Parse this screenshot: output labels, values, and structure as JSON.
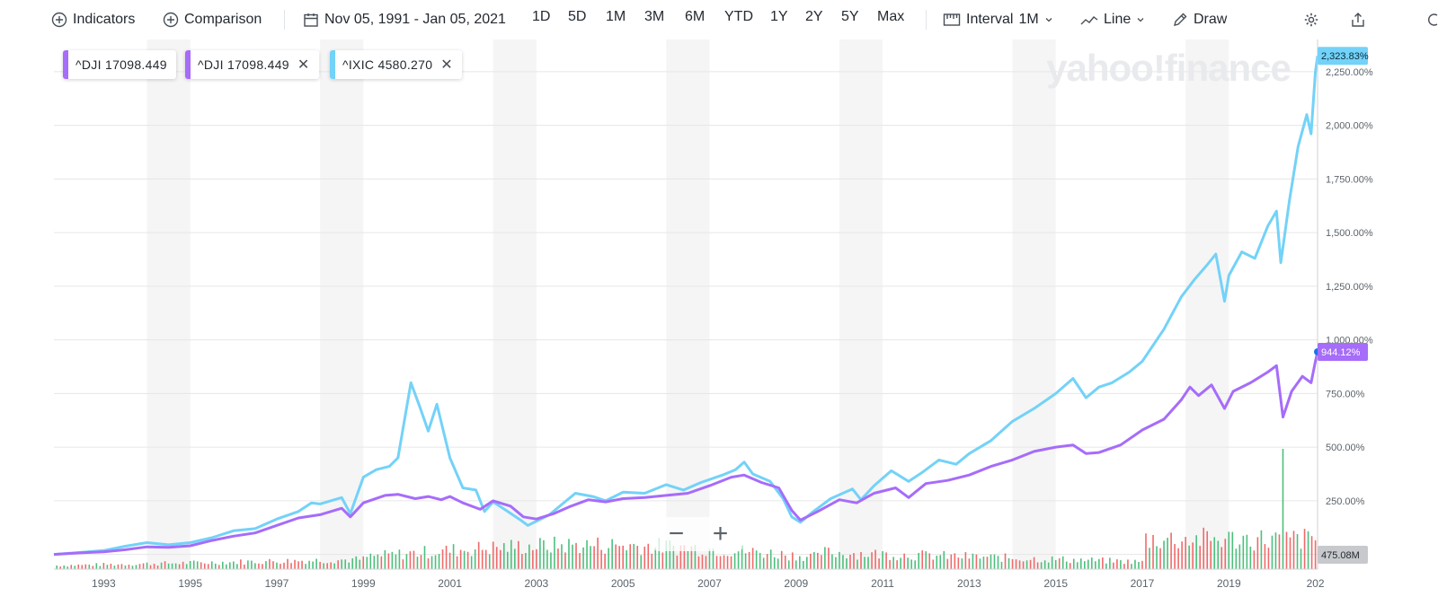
{
  "toolbar": {
    "indicators_label": "Indicators",
    "comparison_label": "Comparison",
    "date_range": "Nov 05, 1991 - Jan 05, 2021",
    "ranges": [
      "1D",
      "5D",
      "1M",
      "3M",
      "6M",
      "YTD",
      "1Y",
      "2Y",
      "5Y",
      "Max"
    ],
    "interval_label": "Interval",
    "interval_value": "1M",
    "chart_type_label": "Line",
    "draw_label": "Draw"
  },
  "legend": [
    {
      "symbol": "^DJI",
      "value": "17098.449",
      "color": "#a66cfa",
      "closable": false
    },
    {
      "symbol": "^DJI",
      "value": "17098.449",
      "color": "#a66cfa",
      "closable": true
    },
    {
      "symbol": "^IXIC",
      "value": "4580.270",
      "color": "#73d2f8",
      "closable": true
    }
  ],
  "watermark": "yahoo!finance",
  "zoom": {
    "out": "−",
    "in": "+"
  },
  "chart_data": {
    "type": "line",
    "x_ticks": [
      "1993",
      "1995",
      "1997",
      "1999",
      "2001",
      "2003",
      "2005",
      "2007",
      "2009",
      "2011",
      "2013",
      "2015",
      "2017",
      "2019",
      "202"
    ],
    "y_ticks": [
      "250.00%",
      "500.00%",
      "750.00%",
      "1,000.00%",
      "1,250.00%",
      "1,500.00%",
      "1,750.00%",
      "2,000.00%",
      "2,250.00%"
    ],
    "ylim": [
      -10,
      2400
    ],
    "xlim": [
      1991.85,
      2021.05
    ],
    "series": [
      {
        "name": "^IXIC",
        "color": "#73d2f8",
        "last_label": "2,323.83%",
        "points": [
          [
            1991.85,
            0
          ],
          [
            1992.5,
            10
          ],
          [
            1993.0,
            18
          ],
          [
            1993.5,
            38
          ],
          [
            1994.0,
            55
          ],
          [
            1994.5,
            45
          ],
          [
            1995.0,
            55
          ],
          [
            1995.5,
            78
          ],
          [
            1996.0,
            110
          ],
          [
            1996.5,
            120
          ],
          [
            1997.0,
            165
          ],
          [
            1997.5,
            200
          ],
          [
            1997.8,
            240
          ],
          [
            1998.0,
            235
          ],
          [
            1998.5,
            265
          ],
          [
            1998.7,
            190
          ],
          [
            1999.0,
            360
          ],
          [
            1999.3,
            395
          ],
          [
            1999.6,
            410
          ],
          [
            1999.8,
            450
          ],
          [
            2000.1,
            800
          ],
          [
            2000.3,
            690
          ],
          [
            2000.5,
            575
          ],
          [
            2000.7,
            700
          ],
          [
            2001.0,
            450
          ],
          [
            2001.3,
            310
          ],
          [
            2001.6,
            300
          ],
          [
            2001.8,
            200
          ],
          [
            2002.0,
            245
          ],
          [
            2002.3,
            205
          ],
          [
            2002.6,
            165
          ],
          [
            2002.8,
            135
          ],
          [
            2003.0,
            155
          ],
          [
            2003.3,
            185
          ],
          [
            2003.6,
            235
          ],
          [
            2003.9,
            285
          ],
          [
            2004.3,
            270
          ],
          [
            2004.6,
            250
          ],
          [
            2005.0,
            290
          ],
          [
            2005.5,
            285
          ],
          [
            2006.0,
            325
          ],
          [
            2006.4,
            300
          ],
          [
            2006.8,
            335
          ],
          [
            2007.3,
            370
          ],
          [
            2007.6,
            395
          ],
          [
            2007.8,
            430
          ],
          [
            2008.0,
            375
          ],
          [
            2008.4,
            340
          ],
          [
            2008.7,
            260
          ],
          [
            2008.9,
            175
          ],
          [
            2009.1,
            150
          ],
          [
            2009.4,
            200
          ],
          [
            2009.8,
            260
          ],
          [
            2010.3,
            305
          ],
          [
            2010.5,
            255
          ],
          [
            2010.8,
            320
          ],
          [
            2011.2,
            390
          ],
          [
            2011.6,
            340
          ],
          [
            2011.9,
            380
          ],
          [
            2012.3,
            440
          ],
          [
            2012.7,
            420
          ],
          [
            2013.0,
            470
          ],
          [
            2013.5,
            530
          ],
          [
            2014.0,
            620
          ],
          [
            2014.5,
            680
          ],
          [
            2015.0,
            750
          ],
          [
            2015.4,
            820
          ],
          [
            2015.7,
            730
          ],
          [
            2016.0,
            780
          ],
          [
            2016.3,
            800
          ],
          [
            2016.7,
            850
          ],
          [
            2017.0,
            900
          ],
          [
            2017.5,
            1050
          ],
          [
            2017.9,
            1200
          ],
          [
            2018.2,
            1280
          ],
          [
            2018.5,
            1350
          ],
          [
            2018.7,
            1400
          ],
          [
            2018.9,
            1180
          ],
          [
            2019.0,
            1300
          ],
          [
            2019.3,
            1410
          ],
          [
            2019.6,
            1380
          ],
          [
            2019.9,
            1530
          ],
          [
            2020.1,
            1600
          ],
          [
            2020.2,
            1360
          ],
          [
            2020.4,
            1650
          ],
          [
            2020.6,
            1900
          ],
          [
            2020.8,
            2050
          ],
          [
            2020.9,
            1960
          ],
          [
            2021.0,
            2250
          ],
          [
            2021.05,
            2323.83
          ]
        ]
      },
      {
        "name": "^DJI",
        "color": "#a66cfa",
        "last_label": "944.12%",
        "points": [
          [
            1991.85,
            0
          ],
          [
            1992.5,
            8
          ],
          [
            1993.0,
            12
          ],
          [
            1993.5,
            22
          ],
          [
            1994.0,
            35
          ],
          [
            1994.5,
            33
          ],
          [
            1995.0,
            40
          ],
          [
            1995.5,
            65
          ],
          [
            1996.0,
            85
          ],
          [
            1996.5,
            100
          ],
          [
            1997.0,
            135
          ],
          [
            1997.5,
            170
          ],
          [
            1998.0,
            185
          ],
          [
            1998.5,
            215
          ],
          [
            1998.7,
            175
          ],
          [
            1999.0,
            240
          ],
          [
            1999.5,
            275
          ],
          [
            1999.8,
            280
          ],
          [
            2000.2,
            260
          ],
          [
            2000.5,
            270
          ],
          [
            2000.8,
            255
          ],
          [
            2001.0,
            270
          ],
          [
            2001.3,
            240
          ],
          [
            2001.7,
            210
          ],
          [
            2002.0,
            250
          ],
          [
            2002.4,
            225
          ],
          [
            2002.7,
            175
          ],
          [
            2003.0,
            165
          ],
          [
            2003.4,
            190
          ],
          [
            2003.8,
            225
          ],
          [
            2004.2,
            255
          ],
          [
            2004.6,
            245
          ],
          [
            2005.0,
            260
          ],
          [
            2005.5,
            265
          ],
          [
            2006.0,
            275
          ],
          [
            2006.5,
            285
          ],
          [
            2007.0,
            320
          ],
          [
            2007.5,
            360
          ],
          [
            2007.8,
            370
          ],
          [
            2008.2,
            335
          ],
          [
            2008.6,
            310
          ],
          [
            2008.9,
            205
          ],
          [
            2009.1,
            160
          ],
          [
            2009.5,
            200
          ],
          [
            2010.0,
            255
          ],
          [
            2010.4,
            240
          ],
          [
            2010.8,
            285
          ],
          [
            2011.3,
            310
          ],
          [
            2011.6,
            265
          ],
          [
            2012.0,
            330
          ],
          [
            2012.5,
            345
          ],
          [
            2013.0,
            370
          ],
          [
            2013.5,
            410
          ],
          [
            2014.0,
            440
          ],
          [
            2014.5,
            480
          ],
          [
            2015.0,
            500
          ],
          [
            2015.4,
            510
          ],
          [
            2015.7,
            470
          ],
          [
            2016.0,
            475
          ],
          [
            2016.5,
            510
          ],
          [
            2017.0,
            580
          ],
          [
            2017.5,
            630
          ],
          [
            2017.9,
            720
          ],
          [
            2018.1,
            780
          ],
          [
            2018.3,
            740
          ],
          [
            2018.6,
            790
          ],
          [
            2018.9,
            680
          ],
          [
            2019.1,
            760
          ],
          [
            2019.5,
            800
          ],
          [
            2019.9,
            850
          ],
          [
            2020.1,
            880
          ],
          [
            2020.25,
            640
          ],
          [
            2020.45,
            760
          ],
          [
            2020.7,
            830
          ],
          [
            2020.9,
            800
          ],
          [
            2021.0,
            900
          ],
          [
            2021.05,
            944.12
          ]
        ]
      }
    ],
    "volume": {
      "axis_label": "475.08M",
      "spike": {
        "x": 2020.2,
        "value_pct": 1.0
      },
      "up_color": "#4dbf7c",
      "down_color": "#f06a6a"
    },
    "grid": true,
    "shaded_alternate_years": true
  }
}
